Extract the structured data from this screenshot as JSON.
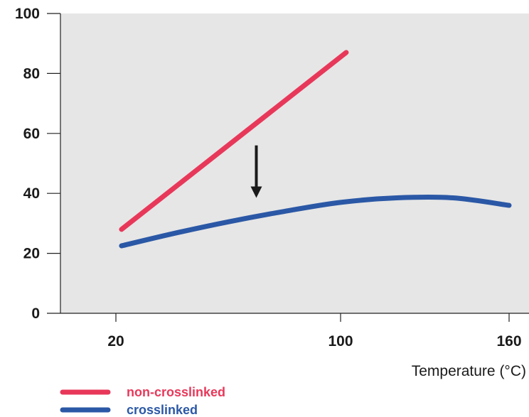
{
  "chart_data": {
    "type": "line",
    "title": "",
    "xlabel": "Temperature (°C)",
    "ylabel": "",
    "xlim": [
      0,
      160
    ],
    "ylim": [
      0,
      100
    ],
    "x_ticks": [
      20,
      100,
      160
    ],
    "y_ticks": [
      0,
      20,
      40,
      60,
      80,
      100
    ],
    "grid": false,
    "legend_position": "bottom-left",
    "colors": {
      "plot_background": "#e6e6e6",
      "axis": "#222222",
      "arrow": "#1a1a1a"
    },
    "series": [
      {
        "name": "non-crosslinked",
        "color": "#e8385a",
        "x": [
          22,
          102
        ],
        "y": [
          28,
          87
        ]
      },
      {
        "name": "crosslinked",
        "color": "#2b58a6",
        "x": [
          22,
          40,
          60,
          80,
          100,
          120,
          140,
          160
        ],
        "y": [
          22.5,
          26.5,
          30.5,
          34,
          37,
          38.5,
          38.5,
          36
        ]
      }
    ],
    "annotations": [
      {
        "type": "arrow",
        "direction": "down",
        "x": 70,
        "y_from": 56,
        "y_to": 38.5
      }
    ]
  }
}
